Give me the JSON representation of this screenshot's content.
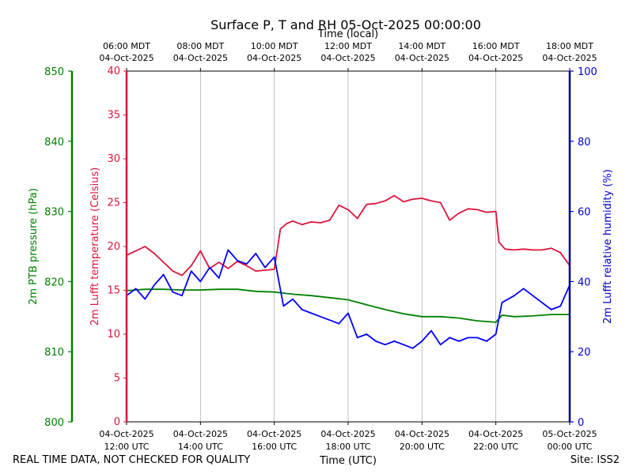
{
  "page": {
    "footer_left": "REAL TIME DATA, NOT CHECKED FOR QUALITY",
    "footer_right": "Site: ISS2"
  },
  "chart_data": {
    "type": "line",
    "title": "Surface P, T and RH 05-Oct-2025 00:00:00",
    "top_axis_label": "Time (local)",
    "xlabel": "Time (UTC)",
    "x_range": [
      "2025-10-04T12:00Z",
      "2025-10-05T00:00Z"
    ],
    "grid": "vertical",
    "bottom_ticks": [
      {
        "x": "2025-10-04T12:00Z",
        "line1": "04-Oct-2025",
        "line2": "12:00 UTC"
      },
      {
        "x": "2025-10-04T14:00Z",
        "line1": "04-Oct-2025",
        "line2": "14:00 UTC"
      },
      {
        "x": "2025-10-04T16:00Z",
        "line1": "04-Oct-2025",
        "line2": "16:00 UTC"
      },
      {
        "x": "2025-10-04T18:00Z",
        "line1": "04-Oct-2025",
        "line2": "18:00 UTC"
      },
      {
        "x": "2025-10-04T20:00Z",
        "line1": "04-Oct-2025",
        "line2": "20:00 UTC"
      },
      {
        "x": "2025-10-04T22:00Z",
        "line1": "04-Oct-2025",
        "line2": "22:00 UTC"
      },
      {
        "x": "2025-10-05T00:00Z",
        "line1": "05-Oct-2025",
        "line2": "00:00 UTC"
      }
    ],
    "top_ticks": [
      {
        "x": "2025-10-04T12:00Z",
        "line1": "06:00 MDT",
        "line2": "04-Oct-2025"
      },
      {
        "x": "2025-10-04T14:00Z",
        "line1": "08:00 MDT",
        "line2": "04-Oct-2025"
      },
      {
        "x": "2025-10-04T16:00Z",
        "line1": "10:00 MDT",
        "line2": "04-Oct-2025"
      },
      {
        "x": "2025-10-04T18:00Z",
        "line1": "12:00 MDT",
        "line2": "04-Oct-2025"
      },
      {
        "x": "2025-10-04T20:00Z",
        "line1": "14:00 MDT",
        "line2": "04-Oct-2025"
      },
      {
        "x": "2025-10-04T22:00Z",
        "line1": "16:00 MDT",
        "line2": "04-Oct-2025"
      },
      {
        "x": "2025-10-05T00:00Z",
        "line1": "18:00 MDT",
        "line2": "04-Oct-2025"
      }
    ],
    "axes": {
      "pressure": {
        "label": "2m PTB pressure (hPa)",
        "range": [
          800,
          850
        ],
        "ticks": [
          800,
          810,
          820,
          830,
          840,
          850
        ],
        "color": "#008000"
      },
      "temperature": {
        "label": "2m Lufft temperature (Celsius)",
        "range": [
          0,
          40
        ],
        "ticks": [
          0,
          5,
          10,
          15,
          20,
          25,
          30,
          35,
          40
        ],
        "color": "#dc143c"
      },
      "humidity": {
        "label": "2m Lufft relative humidity (%)",
        "range": [
          0,
          100
        ],
        "ticks": [
          0,
          20,
          40,
          60,
          80,
          100
        ],
        "color": "#0000cd"
      }
    },
    "series": [
      {
        "axis": "temperature",
        "color": "#dc143c",
        "x": [
          "2025-10-04T12:00Z",
          "2025-10-04T12:15Z",
          "2025-10-04T12:30Z",
          "2025-10-04T12:45Z",
          "2025-10-04T13:00Z",
          "2025-10-04T13:15Z",
          "2025-10-04T13:30Z",
          "2025-10-04T13:45Z",
          "2025-10-04T14:00Z",
          "2025-10-04T14:15Z",
          "2025-10-04T14:30Z",
          "2025-10-04T14:45Z",
          "2025-10-04T15:00Z",
          "2025-10-04T15:15Z",
          "2025-10-04T15:30Z",
          "2025-10-04T15:45Z",
          "2025-10-04T16:00Z",
          "2025-10-04T16:10Z",
          "2025-10-04T16:20Z",
          "2025-10-04T16:30Z",
          "2025-10-04T16:45Z",
          "2025-10-04T17:00Z",
          "2025-10-04T17:15Z",
          "2025-10-04T17:30Z",
          "2025-10-04T17:45Z",
          "2025-10-04T18:00Z",
          "2025-10-04T18:15Z",
          "2025-10-04T18:30Z",
          "2025-10-04T18:45Z",
          "2025-10-04T19:00Z",
          "2025-10-04T19:15Z",
          "2025-10-04T19:30Z",
          "2025-10-04T19:45Z",
          "2025-10-04T20:00Z",
          "2025-10-04T20:15Z",
          "2025-10-04T20:30Z",
          "2025-10-04T20:45Z",
          "2025-10-04T21:00Z",
          "2025-10-04T21:15Z",
          "2025-10-04T21:30Z",
          "2025-10-04T21:45Z",
          "2025-10-04T22:00Z",
          "2025-10-04T22:05Z",
          "2025-10-04T22:15Z",
          "2025-10-04T22:30Z",
          "2025-10-04T22:45Z",
          "2025-10-04T23:00Z",
          "2025-10-04T23:15Z",
          "2025-10-04T23:30Z",
          "2025-10-04T23:45Z",
          "2025-10-05T00:00Z"
        ],
        "values": [
          19.0,
          19.5,
          20.0,
          19.2,
          18.2,
          17.2,
          16.7,
          17.8,
          19.5,
          17.5,
          18.2,
          17.5,
          18.3,
          17.8,
          17.2,
          17.3,
          17.4,
          22.0,
          22.6,
          22.9,
          22.5,
          22.8,
          22.7,
          23.0,
          24.7,
          24.2,
          23.2,
          24.8,
          24.9,
          25.2,
          25.8,
          25.1,
          25.4,
          25.5,
          25.2,
          25.0,
          23.0,
          23.8,
          24.3,
          24.2,
          23.9,
          24.0,
          20.5,
          19.7,
          19.6,
          19.7,
          19.6,
          19.6,
          19.8,
          19.3,
          17.8
        ]
      },
      {
        "axis": "pressure",
        "color": "#008000",
        "x": [
          "2025-10-04T12:00Z",
          "2025-10-04T12:30Z",
          "2025-10-04T13:00Z",
          "2025-10-04T13:30Z",
          "2025-10-04T14:00Z",
          "2025-10-04T14:30Z",
          "2025-10-04T15:00Z",
          "2025-10-04T15:30Z",
          "2025-10-04T16:00Z",
          "2025-10-04T16:30Z",
          "2025-10-04T17:00Z",
          "2025-10-04T17:30Z",
          "2025-10-04T18:00Z",
          "2025-10-04T18:30Z",
          "2025-10-04T19:00Z",
          "2025-10-04T19:30Z",
          "2025-10-04T20:00Z",
          "2025-10-04T20:30Z",
          "2025-10-04T21:00Z",
          "2025-10-04T21:30Z",
          "2025-10-04T22:00Z",
          "2025-10-04T22:10Z",
          "2025-10-04T22:30Z",
          "2025-10-04T23:00Z",
          "2025-10-04T23:30Z",
          "2025-10-05T00:00Z"
        ],
        "values": [
          818.7,
          818.9,
          818.9,
          818.8,
          818.8,
          818.9,
          818.9,
          818.6,
          818.5,
          818.2,
          818.0,
          817.7,
          817.4,
          816.7,
          816.0,
          815.4,
          815.0,
          815.0,
          814.8,
          814.4,
          814.2,
          815.2,
          815.0,
          815.1,
          815.3,
          815.3
        ]
      },
      {
        "axis": "humidity",
        "color": "#0000ff",
        "x": [
          "2025-10-04T12:00Z",
          "2025-10-04T12:15Z",
          "2025-10-04T12:30Z",
          "2025-10-04T12:45Z",
          "2025-10-04T13:00Z",
          "2025-10-04T13:15Z",
          "2025-10-04T13:30Z",
          "2025-10-04T13:45Z",
          "2025-10-04T14:00Z",
          "2025-10-04T14:15Z",
          "2025-10-04T14:30Z",
          "2025-10-04T14:45Z",
          "2025-10-04T15:00Z",
          "2025-10-04T15:15Z",
          "2025-10-04T15:30Z",
          "2025-10-04T15:45Z",
          "2025-10-04T16:00Z",
          "2025-10-04T16:15Z",
          "2025-10-04T16:30Z",
          "2025-10-04T16:45Z",
          "2025-10-04T17:00Z",
          "2025-10-04T17:15Z",
          "2025-10-04T17:30Z",
          "2025-10-04T17:45Z",
          "2025-10-04T18:00Z",
          "2025-10-04T18:15Z",
          "2025-10-04T18:30Z",
          "2025-10-04T18:45Z",
          "2025-10-04T19:00Z",
          "2025-10-04T19:15Z",
          "2025-10-04T19:30Z",
          "2025-10-04T19:45Z",
          "2025-10-04T20:00Z",
          "2025-10-04T20:15Z",
          "2025-10-04T20:30Z",
          "2025-10-04T20:45Z",
          "2025-10-04T21:00Z",
          "2025-10-04T21:15Z",
          "2025-10-04T21:30Z",
          "2025-10-04T21:45Z",
          "2025-10-04T22:00Z",
          "2025-10-04T22:10Z",
          "2025-10-04T22:30Z",
          "2025-10-04T22:45Z",
          "2025-10-04T23:00Z",
          "2025-10-04T23:15Z",
          "2025-10-04T23:30Z",
          "2025-10-04T23:45Z",
          "2025-10-05T00:00Z"
        ],
        "values": [
          36,
          38,
          35,
          39,
          42,
          37,
          36,
          43,
          40,
          44,
          41,
          49,
          46,
          45,
          48,
          44,
          47,
          33,
          35,
          32,
          31,
          30,
          29,
          28,
          31,
          24,
          25,
          23,
          22,
          23,
          22,
          21,
          23,
          26,
          22,
          24,
          23,
          24,
          24,
          23,
          25,
          34,
          36,
          38,
          36,
          34,
          32,
          33,
          39
        ]
      }
    ]
  }
}
